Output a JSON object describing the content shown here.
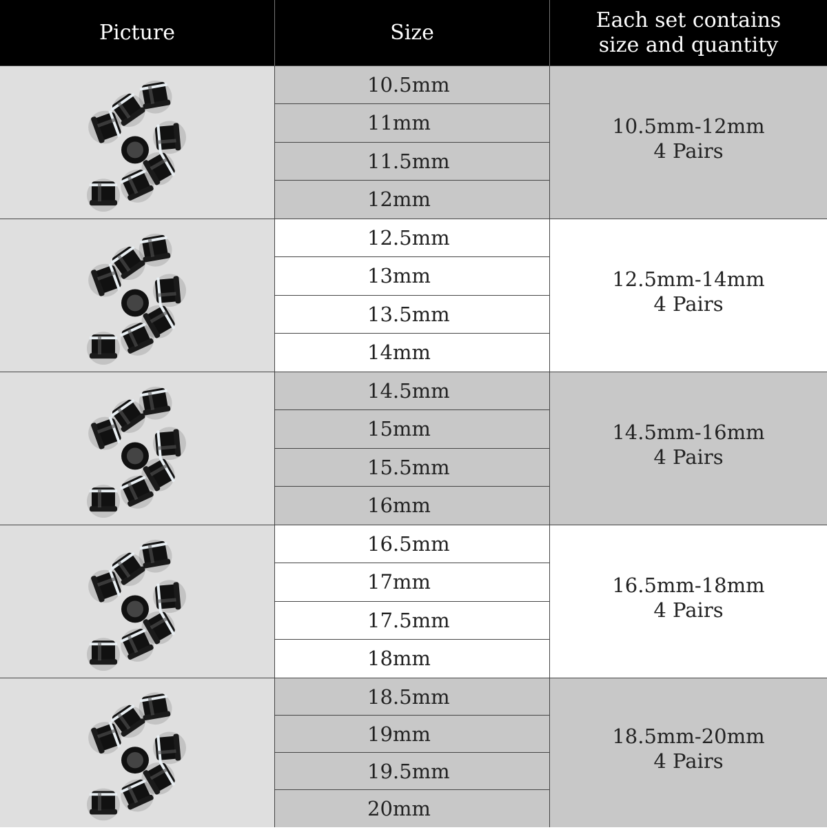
{
  "header": {
    "picture": "Picture",
    "size": "Size",
    "set_line1": "Each set contains",
    "set_line2": "size and quantity"
  },
  "colors": {
    "header_bg": "#000000",
    "picture_bg": "#dfdfdf",
    "gray_row": "#c8c8c8",
    "white_row": "#ffffff"
  },
  "groups": [
    {
      "picture_icon": "flesh-tunnel-plugs-image",
      "sizes": [
        "10.5mm",
        "11mm",
        "11.5mm",
        "12mm"
      ],
      "range": "10.5mm-12mm",
      "quantity": "4 Pairs",
      "shade": "gray"
    },
    {
      "picture_icon": "flesh-tunnel-plugs-image",
      "sizes": [
        "12.5mm",
        "13mm",
        "13.5mm",
        "14mm"
      ],
      "range": "12.5mm-14mm",
      "quantity": "4 Pairs",
      "shade": "white"
    },
    {
      "picture_icon": "flesh-tunnel-plugs-image",
      "sizes": [
        "14.5mm",
        "15mm",
        "15.5mm",
        "16mm"
      ],
      "range": "14.5mm-16mm",
      "quantity": "4 Pairs",
      "shade": "gray"
    },
    {
      "picture_icon": "flesh-tunnel-plugs-image",
      "sizes": [
        "16.5mm",
        "17mm",
        "17.5mm",
        "18mm"
      ],
      "range": "16.5mm-18mm",
      "quantity": "4 Pairs",
      "shade": "white"
    },
    {
      "picture_icon": "flesh-tunnel-plugs-image",
      "sizes": [
        "18.5mm",
        "19mm",
        "19.5mm",
        "20mm"
      ],
      "range": "18.5mm-20mm",
      "quantity": "4 Pairs",
      "shade": "gray"
    }
  ]
}
